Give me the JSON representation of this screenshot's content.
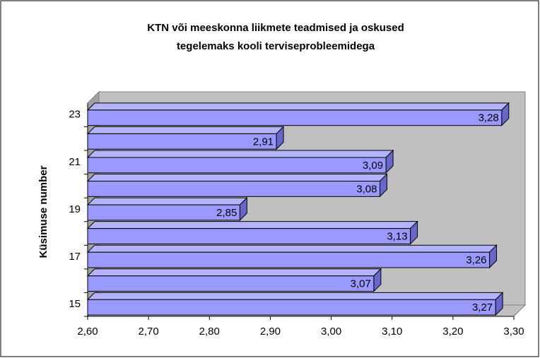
{
  "chart_data": {
    "type": "bar3d_horizontal",
    "title": [
      "KTN või meeskonna liikmete teadmised ja oskused",
      "tegelemaks kooli terviseprobleemidega"
    ],
    "y_label": "Küsimuse number",
    "categories": [
      "15",
      null,
      "17",
      null,
      "19",
      null,
      "21",
      null,
      "23"
    ],
    "values": [
      3.27,
      3.07,
      3.26,
      3.13,
      2.85,
      3.08,
      3.09,
      2.91,
      3.28
    ],
    "value_labels": [
      "3,27",
      "3,07",
      "3,26",
      "3,13",
      "2,85",
      "3,08",
      "3,09",
      "2,91",
      "3,28"
    ],
    "color": "#9999ff",
    "xlim": [
      2.6,
      3.3
    ],
    "xticks": [
      {
        "value": 2.6,
        "label": "2,60"
      },
      {
        "value": 2.7,
        "label": "2,70"
      },
      {
        "value": 2.8,
        "label": "2,80"
      },
      {
        "value": 2.9,
        "label": "2,90"
      },
      {
        "value": 3.0,
        "label": "3,00"
      },
      {
        "value": 3.1,
        "label": "3,10"
      },
      {
        "value": 3.2,
        "label": "3,20"
      },
      {
        "value": 3.3,
        "label": "3,30"
      }
    ]
  }
}
